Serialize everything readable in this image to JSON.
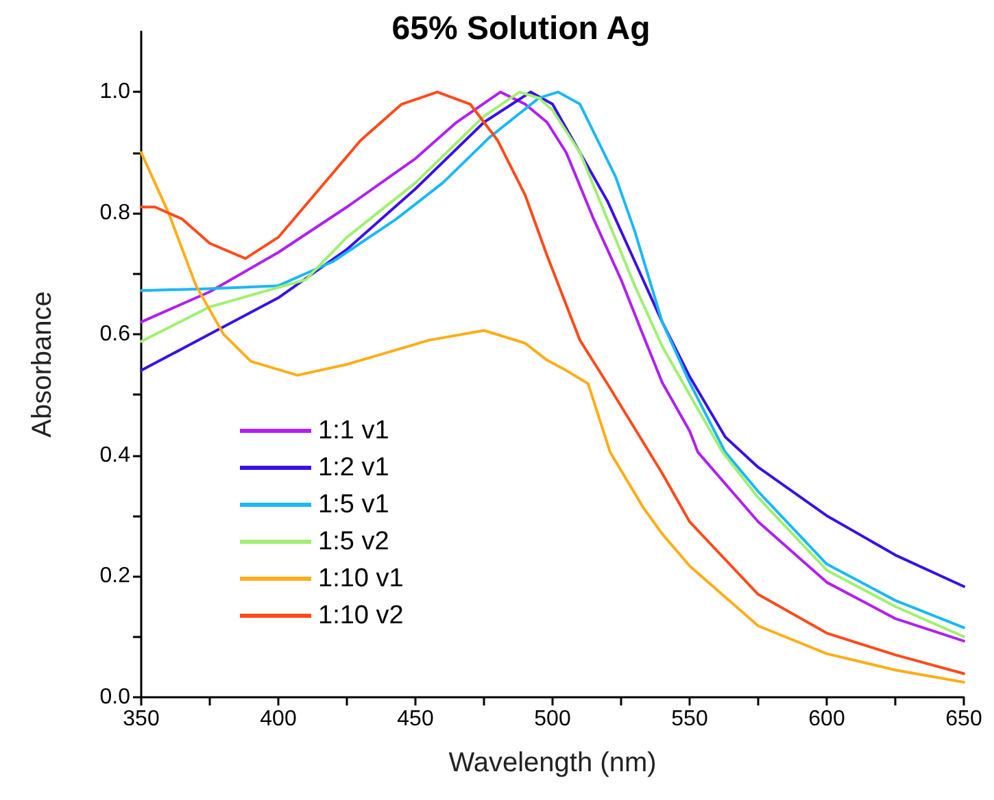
{
  "chart_data": {
    "type": "line",
    "title": "65% Solution Ag",
    "xlabel": "Wavelength (nm)",
    "ylabel": "Absorbance",
    "xlim": [
      350,
      650
    ],
    "ylim": [
      0,
      1.1
    ],
    "xticks": [
      350,
      {
        "value": 375,
        "label": null
      },
      400,
      {
        "value": 425,
        "label": null
      },
      450,
      {
        "value": 475,
        "label": null
      },
      500,
      {
        "value": 525,
        "label": null
      },
      550,
      {
        "value": 575,
        "label": null
      },
      600,
      {
        "value": 625,
        "label": null
      },
      650
    ],
    "yticks": [
      {
        "value": 0,
        "label": "0.0"
      },
      {
        "value": 0.1,
        "label": null
      },
      {
        "value": 0.2,
        "label": "0.2"
      },
      {
        "value": 0.3,
        "label": null
      },
      {
        "value": 0.4,
        "label": "0.4"
      },
      {
        "value": 0.5,
        "label": null
      },
      {
        "value": 0.6,
        "label": "0.6"
      },
      {
        "value": 0.7,
        "label": null
      },
      {
        "value": 0.8,
        "label": "0.8"
      },
      {
        "value": 0.9,
        "label": null
      },
      {
        "value": 1.0,
        "label": "1.0"
      }
    ],
    "grid": false,
    "legend": "bottom left",
    "marker": "none",
    "line_style": "solid",
    "series": [
      {
        "name": "1:1 v1",
        "color": "#b020f0",
        "x": [
          350,
          375,
          400,
          425,
          450,
          465,
          481,
          490,
          498,
          505,
          515,
          525,
          532,
          540,
          550,
          553,
          575,
          600,
          625,
          650
        ],
        "values": [
          0.62,
          0.67,
          0.735,
          0.81,
          0.89,
          0.95,
          1.0,
          0.98,
          0.95,
          0.9,
          0.79,
          0.69,
          0.61,
          0.52,
          0.44,
          0.405,
          0.29,
          0.19,
          0.13,
          0.093
        ]
      },
      {
        "name": "1:2 v1",
        "color": "#3a10e5",
        "x": [
          350,
          375,
          400,
          425,
          450,
          475,
          492,
          500,
          510,
          520,
          530,
          540,
          550,
          563,
          575,
          600,
          625,
          650
        ],
        "values": [
          0.54,
          0.6,
          0.66,
          0.74,
          0.84,
          0.95,
          1.0,
          0.98,
          0.9,
          0.82,
          0.72,
          0.62,
          0.53,
          0.43,
          0.38,
          0.3,
          0.235,
          0.183
        ]
      },
      {
        "name": "1:5 v1",
        "color": "#1ab8f5",
        "x": [
          350,
          375,
          400,
          420,
          443,
          460,
          477,
          495,
          502,
          510,
          523,
          530,
          540,
          550,
          563,
          575,
          600,
          625,
          650
        ],
        "values": [
          0.672,
          0.675,
          0.68,
          0.72,
          0.79,
          0.85,
          0.925,
          0.99,
          1.0,
          0.98,
          0.86,
          0.77,
          0.62,
          0.52,
          0.405,
          0.34,
          0.22,
          0.16,
          0.115
        ]
      },
      {
        "name": "1:5 v2",
        "color": "#a0f070",
        "x": [
          350,
          375,
          410,
          425,
          450,
          475,
          488,
          495,
          500,
          510,
          520,
          530,
          540,
          550,
          562,
          575,
          600,
          625,
          650
        ],
        "values": [
          0.588,
          0.645,
          0.69,
          0.76,
          0.85,
          0.96,
          1.0,
          0.99,
          0.97,
          0.9,
          0.79,
          0.68,
          0.58,
          0.5,
          0.405,
          0.33,
          0.21,
          0.15,
          0.1
        ]
      },
      {
        "name": "1:10 v1",
        "color": "#ffad16",
        "x": [
          350,
          360,
          370,
          380,
          390,
          407,
          425,
          440,
          455,
          475,
          490,
          498,
          505,
          513,
          521,
          533,
          540,
          550,
          575,
          600,
          625,
          650
        ],
        "values": [
          0.9,
          0.8,
          0.68,
          0.6,
          0.555,
          0.532,
          0.55,
          0.57,
          0.59,
          0.606,
          0.585,
          0.557,
          0.54,
          0.518,
          0.405,
          0.314,
          0.27,
          0.217,
          0.118,
          0.072,
          0.045,
          0.025
        ]
      },
      {
        "name": "1:10 v2",
        "color": "#ff4a1a",
        "x": [
          350,
          355,
          365,
          375,
          388,
          400,
          415,
          430,
          445,
          458,
          470,
          480,
          490,
          498,
          510,
          520,
          540,
          550,
          575,
          600,
          625,
          650
        ],
        "values": [
          0.81,
          0.81,
          0.79,
          0.75,
          0.725,
          0.76,
          0.84,
          0.92,
          0.98,
          1.0,
          0.98,
          0.92,
          0.83,
          0.73,
          0.59,
          0.518,
          0.37,
          0.29,
          0.17,
          0.106,
          0.07,
          0.039
        ]
      }
    ]
  }
}
